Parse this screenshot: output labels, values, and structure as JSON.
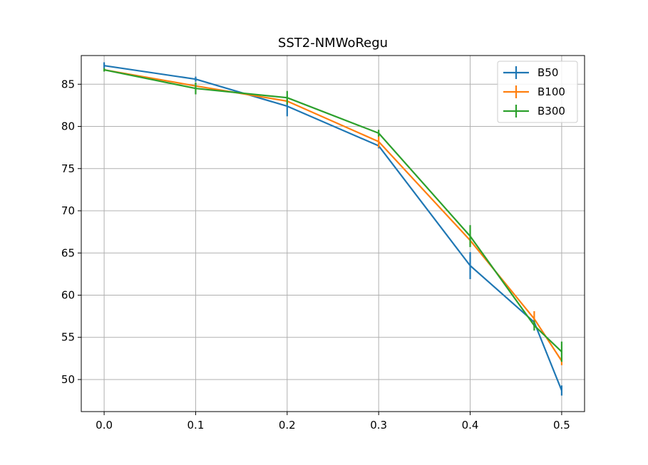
{
  "chart_data": {
    "type": "line",
    "title": "SST2-NMWoRegu",
    "xlabel": "",
    "ylabel": "",
    "xlim": [
      -0.025,
      0.525
    ],
    "ylim": [
      46.2,
      88.4
    ],
    "xticks": [
      "0.0",
      "0.1",
      "0.2",
      "0.3",
      "0.4",
      "0.5"
    ],
    "xtick_values": [
      0.0,
      0.1,
      0.2,
      0.3,
      0.4,
      0.5
    ],
    "yticks": [
      "50",
      "55",
      "60",
      "65",
      "70",
      "75",
      "80",
      "85"
    ],
    "ytick_values": [
      50,
      55,
      60,
      65,
      70,
      75,
      80,
      85
    ],
    "grid": true,
    "legend_position": "top-right",
    "series": [
      {
        "name": "B50",
        "color": "#1f77b4",
        "x": [
          0.0,
          0.1,
          0.2,
          0.3,
          0.4,
          0.47,
          0.5
        ],
        "y": [
          87.2,
          85.6,
          82.4,
          77.7,
          63.5,
          56.8,
          48.7
        ],
        "yerr": [
          0.4,
          0.3,
          1.2,
          0.3,
          1.6,
          0.5,
          0.6
        ]
      },
      {
        "name": "B100",
        "color": "#ff7f0e",
        "x": [
          0.0,
          0.1,
          0.2,
          0.3,
          0.4,
          0.47,
          0.5
        ],
        "y": [
          86.7,
          84.8,
          83.0,
          78.2,
          66.5,
          57.2,
          52.2
        ],
        "yerr": [
          0.2,
          0.4,
          0.4,
          0.7,
          0.6,
          0.9,
          0.5
        ]
      },
      {
        "name": "B300",
        "color": "#2ca02c",
        "x": [
          0.0,
          0.1,
          0.2,
          0.3,
          0.4,
          0.47,
          0.5
        ],
        "y": [
          86.7,
          84.5,
          83.4,
          79.2,
          67.0,
          56.4,
          53.3
        ],
        "yerr": [
          0.2,
          0.7,
          0.8,
          0.4,
          1.3,
          0.6,
          1.2
        ]
      }
    ]
  }
}
